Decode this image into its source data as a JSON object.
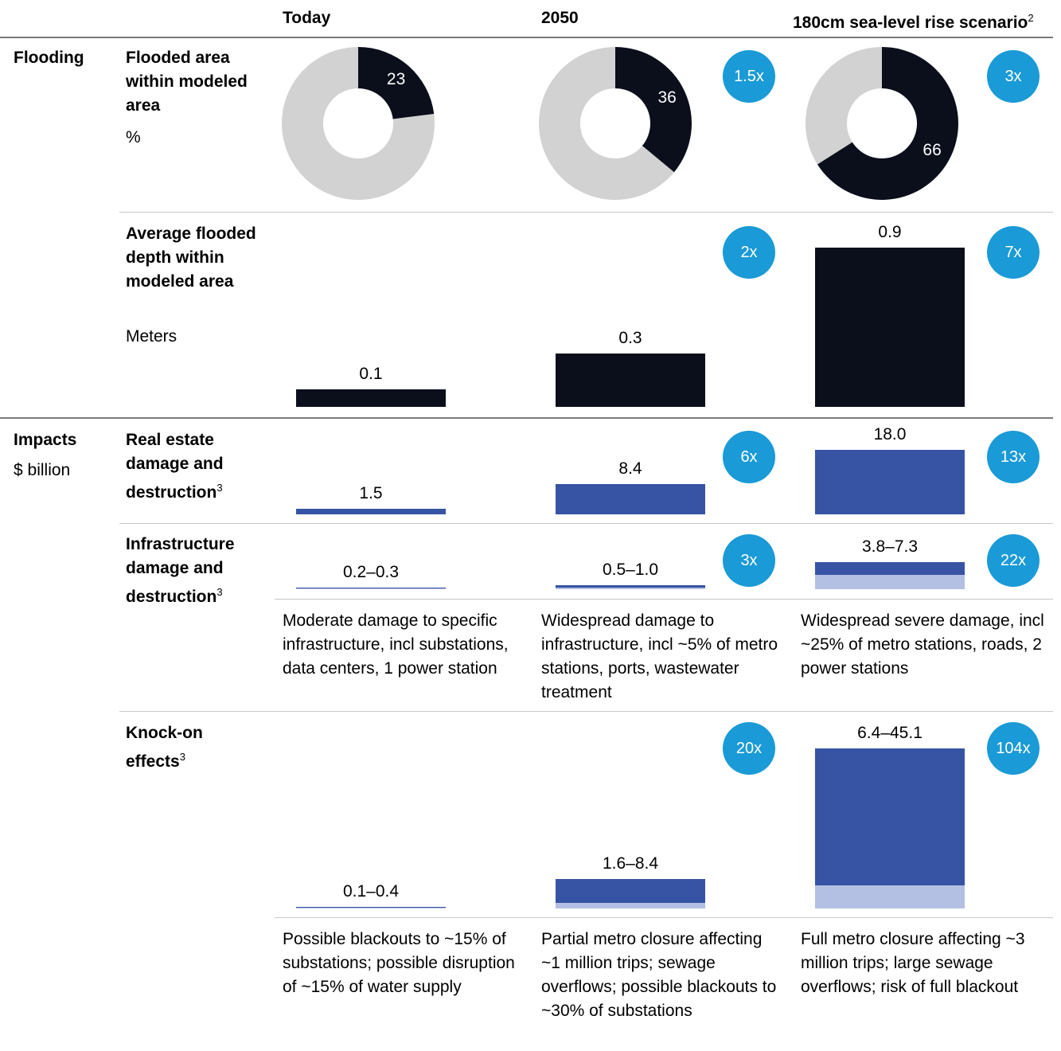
{
  "columns": {
    "today": "Today",
    "y2050": "2050",
    "scenario": "180cm sea-level rise scenario",
    "scenario_sup": "2"
  },
  "sections": {
    "flooding": "Flooding",
    "impacts": "Impacts",
    "impacts_unit": "$ billion"
  },
  "rows": {
    "flooded_area": {
      "label": "Flooded area within modeled area",
      "unit": "%"
    },
    "avg_depth": {
      "label": "Average flooded depth within modeled area",
      "unit": "Meters"
    },
    "real_estate": {
      "label": "Real estate damage and destruction",
      "sup": "3"
    },
    "infrastructure": {
      "label": "Infrastructure damage and destruction",
      "sup": "3"
    },
    "knock_on": {
      "label": "Knock-on effects",
      "sup": "3"
    }
  },
  "notes": {
    "infra_today": "Moderate damage to specific infrastructure, incl substations, data centers, 1 power station",
    "infra_2050": "Widespread damage to infrastructure, incl ~5% of metro stations, ports, wastewater treatment",
    "infra_scenario": "Widespread severe damage, incl ~25% of metro stations, roads, 2 power stations",
    "knock_today": "Possible blackouts to ~15% of substations; possible disruption of ~15% of water supply",
    "knock_2050": "Partial metro closure affecting ~1 million trips; sewage overflows; possible blackouts to ~30% of substations",
    "knock_scenario": "Full metro closure affecting ~3 million trips; large sewage overflows; risk of full blackout"
  },
  "colors": {
    "dark": "#0b0f1c",
    "donut_rest": "#d2d2d2",
    "bar_blue": "#3653a4",
    "bar_light": "#b3c0e4",
    "badge": "#1a9ad6"
  },
  "chart_data": [
    {
      "type": "pie",
      "title": "Flooded area within modeled area",
      "unit": "%",
      "categories": [
        "Today",
        "2050",
        "180cm sea-level rise scenario"
      ],
      "values": [
        23,
        36,
        66
      ],
      "labels": [
        "23",
        "36",
        "66"
      ],
      "multipliers": [
        "",
        "1.5x",
        "3x"
      ]
    },
    {
      "type": "bar",
      "title": "Average flooded depth within modeled area",
      "unit": "Meters",
      "categories": [
        "Today",
        "2050",
        "180cm sea-level rise scenario"
      ],
      "values": [
        0.1,
        0.3,
        0.9
      ],
      "labels": [
        "0.1",
        "0.3",
        "0.9"
      ],
      "multipliers": [
        "",
        "2x",
        "7x"
      ]
    },
    {
      "type": "bar",
      "title": "Real estate damage and destruction",
      "unit": "$ billion",
      "categories": [
        "Today",
        "2050",
        "180cm sea-level rise scenario"
      ],
      "values": [
        1.5,
        8.4,
        18.0
      ],
      "labels": [
        "1.5",
        "8.4",
        "18.0"
      ],
      "multipliers": [
        "",
        "6x",
        "13x"
      ]
    },
    {
      "type": "bar",
      "title": "Infrastructure damage and destruction",
      "unit": "$ billion",
      "categories": [
        "Today",
        "2050",
        "180cm sea-level rise scenario"
      ],
      "low": [
        0.2,
        0.5,
        3.8
      ],
      "high": [
        0.3,
        1.0,
        7.3
      ],
      "labels": [
        "0.2–0.3",
        "0.5–1.0",
        "3.8–7.3"
      ],
      "multipliers": [
        "",
        "3x",
        "22x"
      ]
    },
    {
      "type": "bar",
      "title": "Knock-on effects",
      "unit": "$ billion",
      "categories": [
        "Today",
        "2050",
        "180cm sea-level rise scenario"
      ],
      "low": [
        0.1,
        1.6,
        6.4
      ],
      "high": [
        0.4,
        8.4,
        45.1
      ],
      "labels": [
        "0.1–0.4",
        "1.6–8.4",
        "6.4–45.1"
      ],
      "multipliers": [
        "",
        "20x",
        "104x"
      ]
    }
  ]
}
